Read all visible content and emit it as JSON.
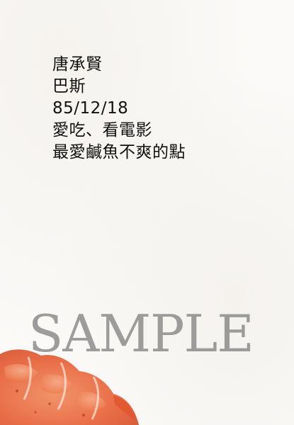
{
  "card": {
    "lines": [
      "唐承賢",
      "巴斯",
      "85/12/18",
      "愛吃、看電影",
      "最愛鹹魚不爽的點"
    ]
  },
  "watermark": {
    "text": "SAMPLE"
  },
  "colors": {
    "text": "#111111",
    "watermark": "#878787",
    "shrimp_orange": "#e8643a",
    "shrimp_light": "#f4a07a",
    "paper": "#fbfaf8"
  }
}
